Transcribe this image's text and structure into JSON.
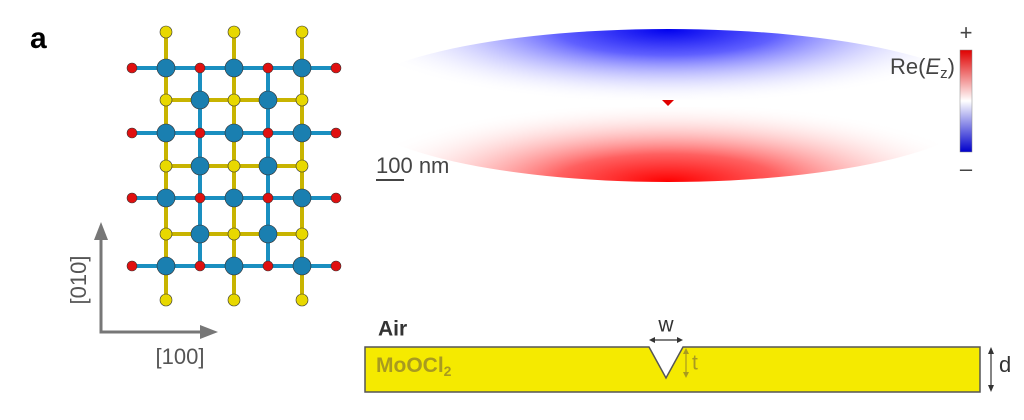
{
  "panel_label": "a",
  "crystal": {
    "axis_vertical": "[010]",
    "axis_horizontal": "[100]"
  },
  "field_map": {
    "scale_bar": "100 nm",
    "colorbar_label": {
      "prefix": "Re(",
      "symbol": "E",
      "subscript": "z",
      "suffix": ")"
    },
    "colorbar_max": "+",
    "colorbar_min": "–"
  },
  "schematic": {
    "top_medium": "Air",
    "material": {
      "base": "MoOCl",
      "subscript": "2"
    },
    "notch_width": "w",
    "notch_depth": "t",
    "thickness": "d"
  }
}
